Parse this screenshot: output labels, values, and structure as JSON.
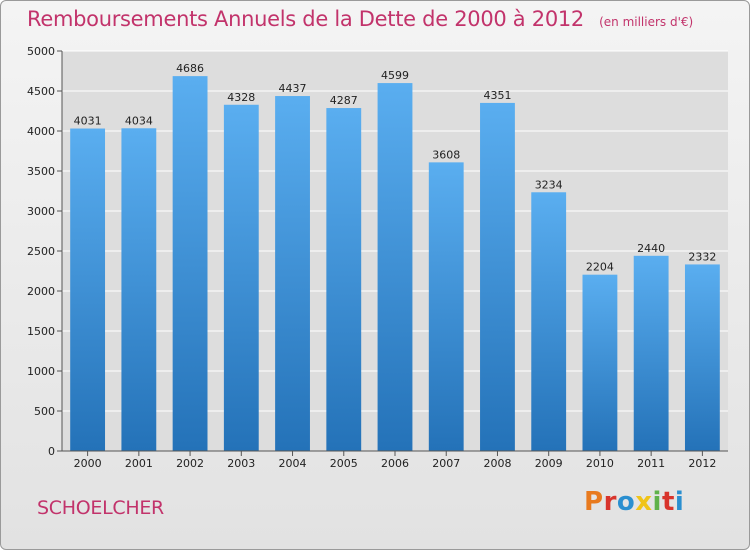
{
  "header": {
    "title": "Remboursements Annuels de la Dette de 2000 à 2012",
    "subtitle": "(en milliers d'€)"
  },
  "footer": {
    "commune": "SCHOELCHER",
    "brand": "Proxiti",
    "brand_colors": [
      "#e87a1e",
      "#d8342c",
      "#2a8fd0",
      "#f0c419",
      "#5fb24a",
      "#d8342c",
      "#2a8fd0"
    ]
  },
  "colors": {
    "title": "#c2336b",
    "bar_top": "#5aaef0",
    "bar_bottom": "#2472b8",
    "plot_bg": "#dddddd",
    "grid": "#ffffff"
  },
  "chart_data": {
    "type": "bar",
    "categories": [
      "2000",
      "2001",
      "2002",
      "2003",
      "2004",
      "2005",
      "2006",
      "2007",
      "2008",
      "2009",
      "2010",
      "2011",
      "2012"
    ],
    "values": [
      4031,
      4034,
      4686,
      4328,
      4437,
      4287,
      4599,
      3608,
      4351,
      3234,
      2204,
      2440,
      2332
    ],
    "ylim": [
      0,
      5000
    ],
    "yticks": [
      0,
      500,
      1000,
      1500,
      2000,
      2500,
      3000,
      3500,
      4000,
      4500,
      5000
    ],
    "grid": true
  }
}
